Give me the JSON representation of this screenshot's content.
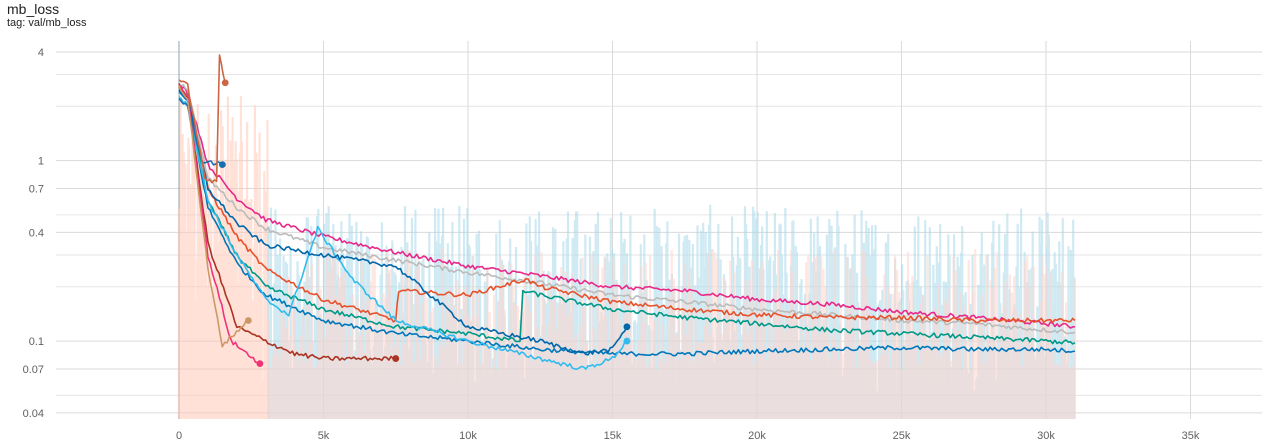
{
  "header": {
    "title": "mb_loss",
    "tag": "tag: val/mb_loss"
  },
  "chart_data": {
    "type": "line",
    "title": "mb_loss",
    "subtitle": "tag: val/mb_loss",
    "xlabel": "",
    "ylabel": "",
    "x_scale": "linear",
    "y_scale": "log",
    "xlim": [
      0,
      38000
    ],
    "ylim": [
      0.037,
      4.6
    ],
    "grid": true,
    "legend": "none",
    "x_ticks": [
      {
        "value": 0,
        "label": "0"
      },
      {
        "value": 5000,
        "label": "5k"
      },
      {
        "value": 10000,
        "label": "10k"
      },
      {
        "value": 15000,
        "label": "15k"
      },
      {
        "value": 20000,
        "label": "20k"
      },
      {
        "value": 25000,
        "label": "25k"
      },
      {
        "value": 30000,
        "label": "30k"
      },
      {
        "value": 35000,
        "label": "35k"
      }
    ],
    "y_ticks": [
      {
        "value": 4,
        "label": "4"
      },
      {
        "value": 1,
        "label": "1"
      },
      {
        "value": 0.7,
        "label": "0.7"
      },
      {
        "value": 0.4,
        "label": "0.4"
      },
      {
        "value": 0.1,
        "label": "0.1"
      },
      {
        "value": 0.07,
        "label": "0.07"
      },
      {
        "value": 0.04,
        "label": "0.04"
      }
    ],
    "y_minor_gridlines": [
      3,
      2,
      0.5,
      0.3,
      0.2,
      0.05
    ],
    "series": [
      {
        "color": "#e7298a",
        "x": [
          0,
          300,
          1000,
          2000,
          3000,
          5000,
          7500,
          10000,
          12500,
          15000,
          17500,
          20000,
          22500,
          25000,
          27500,
          30000,
          31000
        ],
        "y": [
          2.6,
          2.4,
          0.95,
          0.62,
          0.47,
          0.38,
          0.31,
          0.26,
          0.23,
          0.2,
          0.19,
          0.17,
          0.16,
          0.145,
          0.135,
          0.125,
          0.12
        ]
      },
      {
        "color": "#bbbbbb",
        "x": [
          0,
          300,
          1000,
          2000,
          3000,
          5000,
          7500,
          10000,
          12500,
          15000,
          17500,
          20000,
          22500,
          25000,
          27500,
          30000,
          31000
        ],
        "y": [
          2.7,
          2.5,
          0.8,
          0.55,
          0.42,
          0.33,
          0.28,
          0.24,
          0.21,
          0.18,
          0.165,
          0.15,
          0.14,
          0.13,
          0.125,
          0.115,
          0.112
        ]
      },
      {
        "color": "#e6522c",
        "x": [
          0,
          300,
          1000,
          2000,
          3000,
          5000,
          7500,
          7600,
          10000,
          12000,
          12500,
          15000,
          17500,
          20000,
          22500,
          25000,
          27500,
          30000,
          31000
        ],
        "y": [
          2.5,
          2.3,
          0.7,
          0.38,
          0.25,
          0.17,
          0.13,
          0.19,
          0.18,
          0.22,
          0.2,
          0.165,
          0.15,
          0.14,
          0.135,
          0.135,
          0.13,
          0.13,
          0.13
        ]
      },
      {
        "color": "#009988",
        "x": [
          0,
          300,
          1000,
          2000,
          3000,
          5000,
          7500,
          10000,
          11800,
          11900,
          12500,
          15000,
          17500,
          20000,
          22500,
          25000,
          27500,
          30000,
          31000
        ],
        "y": [
          2.6,
          2.2,
          0.6,
          0.3,
          0.2,
          0.15,
          0.12,
          0.11,
          0.1,
          0.19,
          0.18,
          0.15,
          0.135,
          0.125,
          0.115,
          0.11,
          0.105,
          0.1,
          0.098
        ]
      },
      {
        "color": "#0077bb",
        "x": [
          0,
          300,
          1000,
          2000,
          3000,
          5000,
          7500,
          10000,
          12500,
          15000,
          15500,
          17500,
          20000,
          22500,
          25000,
          27500,
          30000,
          31000
        ],
        "y": [
          2.4,
          2.1,
          0.55,
          0.27,
          0.18,
          0.13,
          0.11,
          0.1,
          0.09,
          0.085,
          0.085,
          0.085,
          0.088,
          0.09,
          0.092,
          0.09,
          0.09,
          0.088
        ]
      },
      {
        "color": "#33bbee",
        "x": [
          0,
          300,
          1000,
          2000,
          3000,
          3800,
          4800,
          6000,
          7500,
          10000,
          12500,
          14000,
          15000,
          15500
        ],
        "y": [
          2.3,
          2.0,
          0.6,
          0.3,
          0.17,
          0.14,
          0.42,
          0.22,
          0.13,
          0.1,
          0.08,
          0.07,
          0.08,
          0.1
        ]
      },
      {
        "color": "#0066aa",
        "x": [
          0,
          300,
          1000,
          2000,
          3000,
          5000,
          7500,
          10000,
          12500,
          14000,
          15000,
          15500
        ],
        "y": [
          2.5,
          2.2,
          0.7,
          0.45,
          0.34,
          0.3,
          0.26,
          0.12,
          0.1,
          0.085,
          0.09,
          0.12
        ]
      },
      {
        "color": "#1a6faf",
        "x": [
          0,
          300,
          800,
          1500
        ],
        "y": [
          2.2,
          2.0,
          1.0,
          0.95
        ]
      },
      {
        "color": "#aa3322",
        "x": [
          0,
          300,
          1000,
          2000,
          3000,
          4000,
          5000,
          7500
        ],
        "y": [
          2.6,
          2.2,
          0.35,
          0.12,
          0.1,
          0.085,
          0.08,
          0.08
        ]
      },
      {
        "color": "#ee3377",
        "x": [
          0,
          300,
          1000,
          1800,
          2800
        ],
        "y": [
          2.6,
          2.3,
          0.3,
          0.1,
          0.075
        ]
      },
      {
        "color": "#cc6644",
        "x": [
          0,
          300,
          900,
          1300,
          1400,
          1600
        ],
        "y": [
          2.8,
          2.6,
          0.8,
          0.75,
          3.8,
          2.7
        ]
      },
      {
        "color": "#cc9966",
        "x": [
          0,
          300,
          1000,
          1500,
          2400
        ],
        "y": [
          2.6,
          2.2,
          0.25,
          0.095,
          0.13
        ]
      }
    ]
  }
}
